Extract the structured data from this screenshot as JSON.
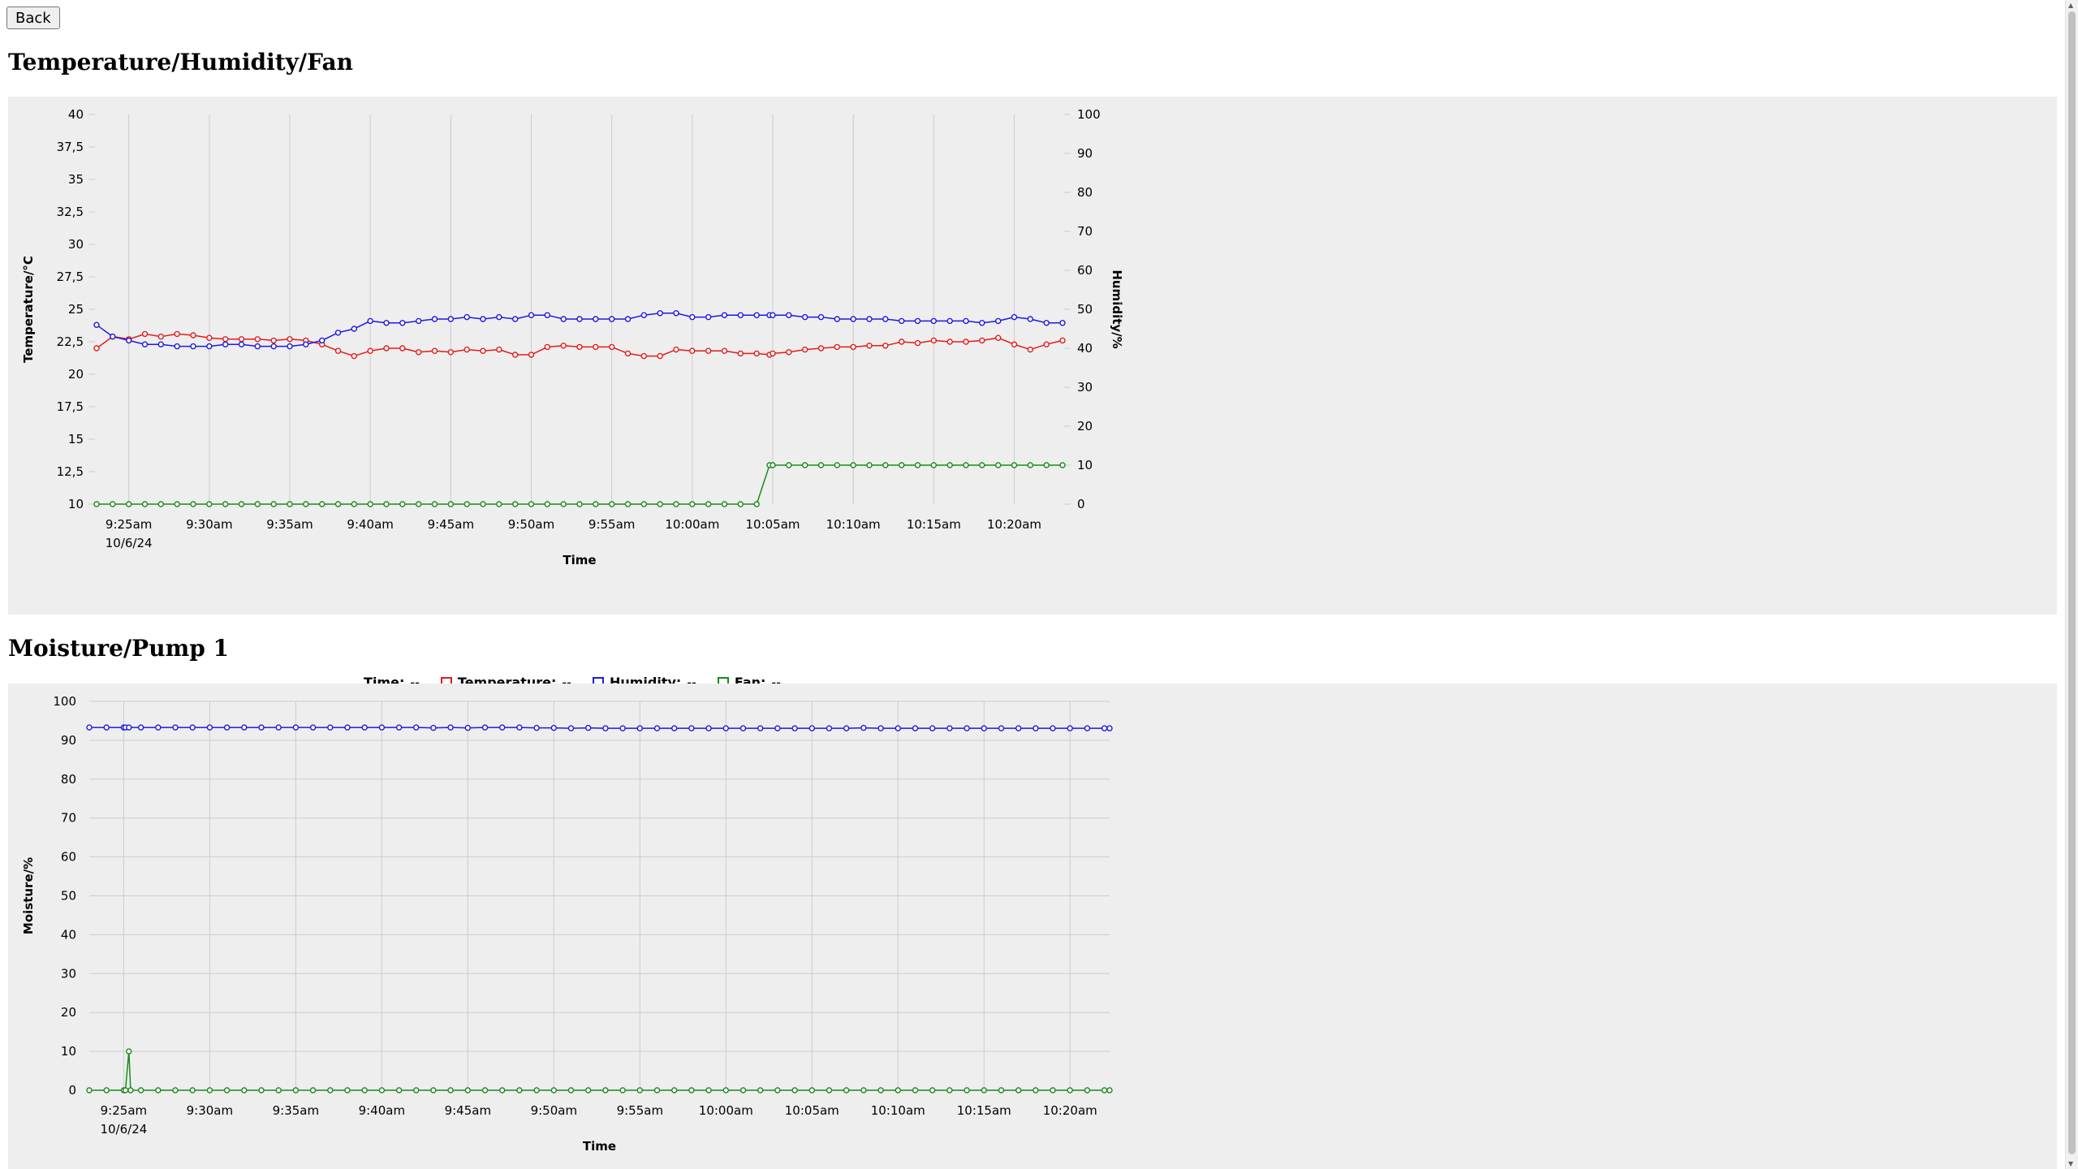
{
  "back_label": "Back",
  "sections": [
    {
      "title": "Temperature/Humidity/Fan"
    },
    {
      "title": "Moisture/Pump 1"
    }
  ],
  "legend": {
    "time_label": "Time:",
    "time_value": "--",
    "temperature_label": "Temperature:",
    "temperature_value": "--",
    "humidity_label": "Humidity:",
    "humidity_value": "--",
    "fan_label": "Fan:",
    "fan_value": "--"
  },
  "colors": {
    "temperature": "#e41a1c",
    "humidity": "#1a1ae4",
    "fan": "#1a8a1a",
    "moisture": "#1a1ae4",
    "pump": "#1a8a1a"
  },
  "chart_data": [
    {
      "type": "line",
      "xlabel": "Time",
      "ylabel": "Temperature/°C",
      "y2label": "Humidity/%",
      "ylim": [
        10,
        40
      ],
      "y2lim": [
        0,
        100
      ],
      "xlim": [
        -2,
        58
      ],
      "grid": true,
      "legend_position": "bottom",
      "x_ticks": [
        {
          "x": 0,
          "label": "9:25am",
          "sub": "10/6/24"
        },
        {
          "x": 5,
          "label": "9:30am"
        },
        {
          "x": 10,
          "label": "9:35am"
        },
        {
          "x": 15,
          "label": "9:40am"
        },
        {
          "x": 20,
          "label": "9:45am"
        },
        {
          "x": 25,
          "label": "9:50am"
        },
        {
          "x": 30,
          "label": "9:55am"
        },
        {
          "x": 35,
          "label": "10:00am"
        },
        {
          "x": 40,
          "label": "10:05am"
        },
        {
          "x": 45,
          "label": "10:10am"
        },
        {
          "x": 50,
          "label": "10:15am"
        },
        {
          "x": 55,
          "label": "10:20am"
        }
      ],
      "y_ticks": [
        "10",
        "12,5",
        "15",
        "17,5",
        "20",
        "22,5",
        "25",
        "27,5",
        "30",
        "32,5",
        "35",
        "37,5",
        "40"
      ],
      "y2_ticks": [
        "0",
        "10",
        "20",
        "30",
        "40",
        "50",
        "60",
        "70",
        "80",
        "90",
        "100"
      ],
      "x": [
        -2,
        -1,
        0,
        1,
        2,
        3,
        4,
        5,
        6,
        7,
        8,
        9,
        10,
        11,
        12,
        13,
        14,
        15,
        16,
        17,
        18,
        19,
        20,
        21,
        22,
        23,
        24,
        25,
        26,
        27,
        28,
        29,
        30,
        31,
        32,
        33,
        34,
        35,
        36,
        37,
        38,
        39,
        39.8,
        40,
        41,
        42,
        43,
        44,
        45,
        46,
        47,
        48,
        49,
        50,
        51,
        52,
        53,
        54,
        55,
        56,
        57,
        58
      ],
      "series": [
        {
          "name": "Temperature",
          "axis": "left",
          "values": [
            22.0,
            22.9,
            22.7,
            23.1,
            22.9,
            23.1,
            23.0,
            22.8,
            22.7,
            22.7,
            22.7,
            22.6,
            22.7,
            22.6,
            22.3,
            21.8,
            21.4,
            21.8,
            22.0,
            22.0,
            21.7,
            21.8,
            21.7,
            21.9,
            21.8,
            21.9,
            21.5,
            21.5,
            22.1,
            22.2,
            22.1,
            22.1,
            22.1,
            21.6,
            21.4,
            21.4,
            21.9,
            21.8,
            21.8,
            21.8,
            21.6,
            21.6,
            21.5,
            21.6,
            21.7,
            21.9,
            22.0,
            22.1,
            22.1,
            22.2,
            22.2,
            22.5,
            22.4,
            22.6,
            22.5,
            22.5,
            22.6,
            22.8,
            22.3,
            21.9,
            22.3,
            22.6
          ]
        },
        {
          "name": "Humidity",
          "axis": "right",
          "values": [
            46,
            43,
            42,
            41,
            41,
            40.5,
            40.5,
            40.5,
            41,
            41,
            40.5,
            40.5,
            40.5,
            41,
            42,
            44,
            45,
            47,
            46.5,
            46.5,
            47,
            47.5,
            47.5,
            48,
            47.5,
            48,
            47.5,
            48.5,
            48.5,
            47.5,
            47.5,
            47.5,
            47.5,
            47.5,
            48.5,
            49,
            49,
            48,
            48,
            48.5,
            48.5,
            48.5,
            48.5,
            48.5,
            48.5,
            48,
            48,
            47.5,
            47.5,
            47.5,
            47.5,
            47,
            47,
            47,
            47,
            47,
            46.5,
            47,
            48,
            47.5,
            46.5,
            46.5
          ]
        },
        {
          "name": "Fan",
          "axis": "right",
          "values": [
            0,
            0,
            0,
            0,
            0,
            0,
            0,
            0,
            0,
            0,
            0,
            0,
            0,
            0,
            0,
            0,
            0,
            0,
            0,
            0,
            0,
            0,
            0,
            0,
            0,
            0,
            0,
            0,
            0,
            0,
            0,
            0,
            0,
            0,
            0,
            0,
            0,
            0,
            0,
            0,
            0,
            0,
            10,
            10,
            10,
            10,
            10,
            10,
            10,
            10,
            10,
            10,
            10,
            10,
            10,
            10,
            10,
            10,
            10,
            10,
            10,
            10
          ]
        }
      ]
    },
    {
      "type": "line",
      "xlabel": "Time",
      "ylabel": "Moisture/%",
      "ylim": [
        0,
        100
      ],
      "xlim": [
        -2,
        57.3
      ],
      "grid": true,
      "x_ticks": [
        {
          "x": 0,
          "label": "9:25am",
          "sub": "10/6/24"
        },
        {
          "x": 5,
          "label": "9:30am"
        },
        {
          "x": 10,
          "label": "9:35am"
        },
        {
          "x": 15,
          "label": "9:40am"
        },
        {
          "x": 20,
          "label": "9:45am"
        },
        {
          "x": 25,
          "label": "9:50am"
        },
        {
          "x": 30,
          "label": "9:55am"
        },
        {
          "x": 35,
          "label": "10:00am"
        },
        {
          "x": 40,
          "label": "10:05am"
        },
        {
          "x": 45,
          "label": "10:10am"
        },
        {
          "x": 50,
          "label": "10:15am"
        },
        {
          "x": 55,
          "label": "10:20am"
        }
      ],
      "y_ticks": [
        "0",
        "10",
        "20",
        "30",
        "40",
        "50",
        "60",
        "70",
        "80",
        "90",
        "100"
      ],
      "series": [
        {
          "name": "Moisture",
          "x": [
            -2,
            -1,
            0,
            0.1,
            0.3,
            1,
            2,
            3,
            4,
            5,
            6,
            7,
            8,
            9,
            10,
            11,
            12,
            13,
            14,
            15,
            16,
            17,
            18,
            19,
            20,
            21,
            22,
            23,
            24,
            25,
            26,
            27,
            28,
            29,
            30,
            31,
            32,
            33,
            34,
            35,
            36,
            37,
            38,
            39,
            40,
            41,
            42,
            43,
            44,
            45,
            46,
            47,
            48,
            49,
            50,
            51,
            52,
            53,
            54,
            55,
            56,
            57,
            57.3
          ],
          "values": [
            93.3,
            93.3,
            93.3,
            93.3,
            93.3,
            93.3,
            93.3,
            93.3,
            93.3,
            93.3,
            93.3,
            93.3,
            93.3,
            93.3,
            93.3,
            93.3,
            93.3,
            93.3,
            93.3,
            93.3,
            93.3,
            93.3,
            93.2,
            93.3,
            93.2,
            93.3,
            93.3,
            93.3,
            93.2,
            93.2,
            93.1,
            93.2,
            93.1,
            93.1,
            93.1,
            93.1,
            93.1,
            93.1,
            93.1,
            93.1,
            93.1,
            93.1,
            93.1,
            93.1,
            93.1,
            93.1,
            93.1,
            93.2,
            93.1,
            93.1,
            93.1,
            93.1,
            93.1,
            93.1,
            93.1,
            93.1,
            93.1,
            93.1,
            93.1,
            93.1,
            93.1,
            93.1,
            93.1
          ]
        },
        {
          "name": "Pump 1",
          "x": [
            -2,
            -1,
            0,
            0.1,
            0.3,
            0.4,
            1,
            2,
            3,
            4,
            5,
            6,
            7,
            8,
            9,
            10,
            11,
            12,
            13,
            14,
            15,
            16,
            17,
            18,
            19,
            20,
            21,
            22,
            23,
            24,
            25,
            26,
            27,
            28,
            29,
            30,
            31,
            32,
            33,
            34,
            35,
            36,
            37,
            38,
            39,
            40,
            41,
            42,
            43,
            44,
            45,
            46,
            47,
            48,
            49,
            50,
            51,
            52,
            53,
            54,
            55,
            56,
            57,
            57.3
          ],
          "values": [
            0,
            0,
            0,
            0,
            10,
            0,
            0,
            0,
            0,
            0,
            0,
            0,
            0,
            0,
            0,
            0,
            0,
            0,
            0,
            0,
            0,
            0,
            0,
            0,
            0,
            0,
            0,
            0,
            0,
            0,
            0,
            0,
            0,
            0,
            0,
            0,
            0,
            0,
            0,
            0,
            0,
            0,
            0,
            0,
            0,
            0,
            0,
            0,
            0,
            0,
            0,
            0,
            0,
            0,
            0,
            0,
            0,
            0,
            0,
            0,
            0,
            0,
            0,
            0
          ]
        }
      ]
    }
  ]
}
